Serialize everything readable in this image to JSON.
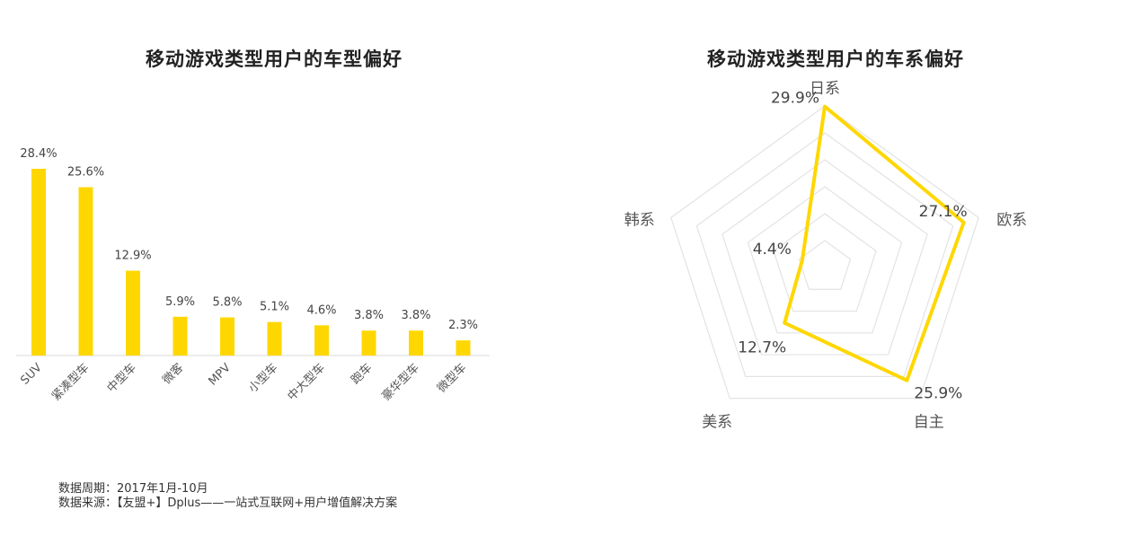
{
  "chart_data": [
    {
      "type": "bar",
      "title": "移动游戏类型用户的车型偏好",
      "categories": [
        "SUV",
        "紧凑型车",
        "中型车",
        "微客",
        "MPV",
        "小型车",
        "中大型车",
        "跑车",
        "豪华型车",
        "微型车"
      ],
      "values": [
        28.4,
        25.6,
        12.9,
        5.9,
        5.8,
        5.1,
        4.6,
        3.8,
        3.8,
        2.3
      ],
      "value_labels": [
        "28.4%",
        "25.6%",
        "12.9%",
        "5.9%",
        "5.8%",
        "5.1%",
        "4.6%",
        "3.8%",
        "3.8%",
        "2.3%"
      ],
      "unit": "%",
      "ylim": [
        0,
        28.4
      ],
      "grid": false,
      "color": "#FFD700"
    },
    {
      "type": "radar",
      "title": "移动游戏类型用户的车系偏好",
      "axes": [
        "日系",
        "欧系",
        "自主",
        "美系",
        "韩系"
      ],
      "values": [
        29.9,
        27.1,
        25.9,
        12.7,
        4.4
      ],
      "value_labels": [
        "29.9%",
        "27.1%",
        "25.9%",
        "12.7%",
        "4.4%"
      ],
      "unit": "%",
      "range": [
        0,
        30
      ],
      "rings": 6,
      "color": "#FFD700",
      "grid_color": "#e3e3e3"
    }
  ],
  "footer": {
    "period": "数据周期：2017年1月-10月",
    "source": "数据来源：【友盟+】Dplus——一站式互联网+用户增值解决方案"
  }
}
